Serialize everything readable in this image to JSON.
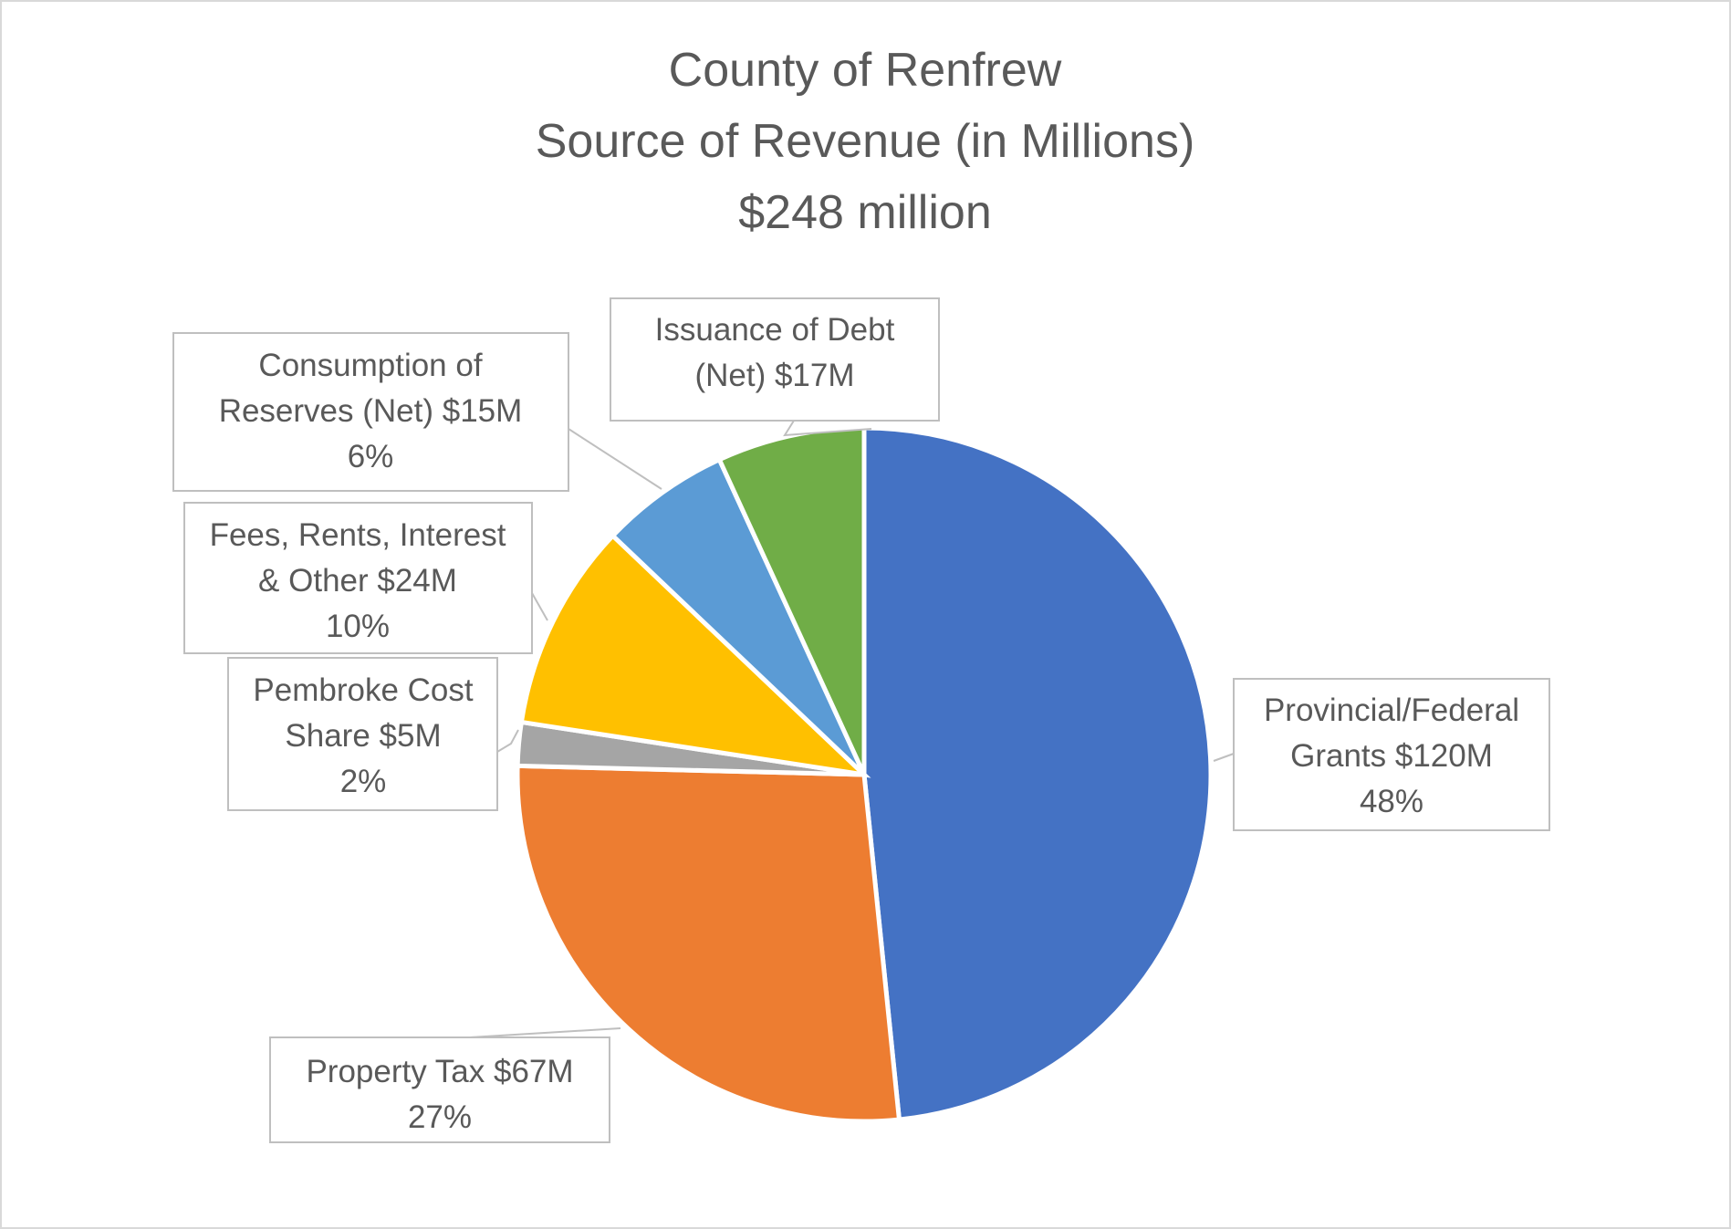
{
  "chart_data": {
    "type": "pie",
    "title": [
      "County of Renfrew",
      "Source of Revenue (in Millions)",
      "$248 million"
    ],
    "unit": "$M",
    "start_angle": "top, clockwise",
    "slices": [
      {
        "name": "Provincial/Federal Grants",
        "value": 120,
        "percent": "48%",
        "color": "#4472C4",
        "label": [
          "Provincial/Federal",
          "Grants  $120M",
          "48%"
        ]
      },
      {
        "name": "Property Tax",
        "value": 67,
        "percent": "27%",
        "color": "#ED7D31",
        "label": [
          "Property Tax  $67M",
          "27%"
        ]
      },
      {
        "name": "Pembroke Cost Share",
        "value": 5,
        "percent": "2%",
        "color": "#A5A5A5",
        "label": [
          "Pembroke Cost",
          "Share $5M",
          "2%"
        ]
      },
      {
        "name": "Fees, Rents, Interest & Other",
        "value": 24,
        "percent": "10%",
        "color": "#FFC000",
        "label": [
          "Fees, Rents, Interest",
          "& Other  $24M",
          "10%"
        ]
      },
      {
        "name": "Consumption of Reserves (Net)",
        "value": 15,
        "percent": "6%",
        "color": "#5B9BD5",
        "label": [
          "Consumption of",
          "Reserves (Net)  $15M",
          "6%"
        ]
      },
      {
        "name": "Issuance of Debt (Net)",
        "value": 17,
        "color": "#70AD47",
        "label": [
          "Issuance of Debt",
          "(Net)  $17M"
        ]
      }
    ],
    "legend": "none"
  }
}
